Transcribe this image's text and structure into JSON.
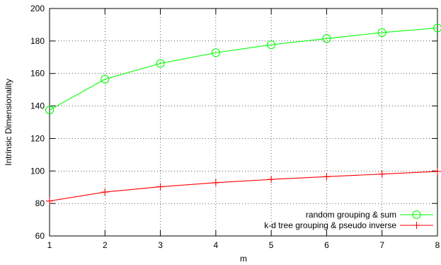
{
  "chart_data": {
    "type": "line",
    "title": "",
    "xlabel": "m",
    "ylabel": "Intrinsic Dimensionality",
    "x": [
      1,
      2,
      3,
      4,
      5,
      6,
      7,
      8
    ],
    "xlim": [
      1,
      8
    ],
    "ylim": [
      60,
      200
    ],
    "xticks": [
      1,
      2,
      3,
      4,
      5,
      6,
      7,
      8
    ],
    "yticks": [
      60,
      80,
      100,
      120,
      140,
      160,
      180,
      200
    ],
    "grid": true,
    "legend_position": "bottom-right",
    "series": [
      {
        "name": "random grouping & sum",
        "values": [
          137.5,
          156.5,
          166.2,
          172.8,
          177.7,
          181.5,
          185.2,
          188.0
        ],
        "color": "#00ff00",
        "marker": "circle"
      },
      {
        "name": "k-d tree grouping & pseudo inverse",
        "values": [
          81.5,
          87.0,
          90.3,
          92.8,
          94.8,
          96.5,
          98.1,
          99.7
        ],
        "color": "#ff0000",
        "marker": "plus"
      }
    ]
  }
}
